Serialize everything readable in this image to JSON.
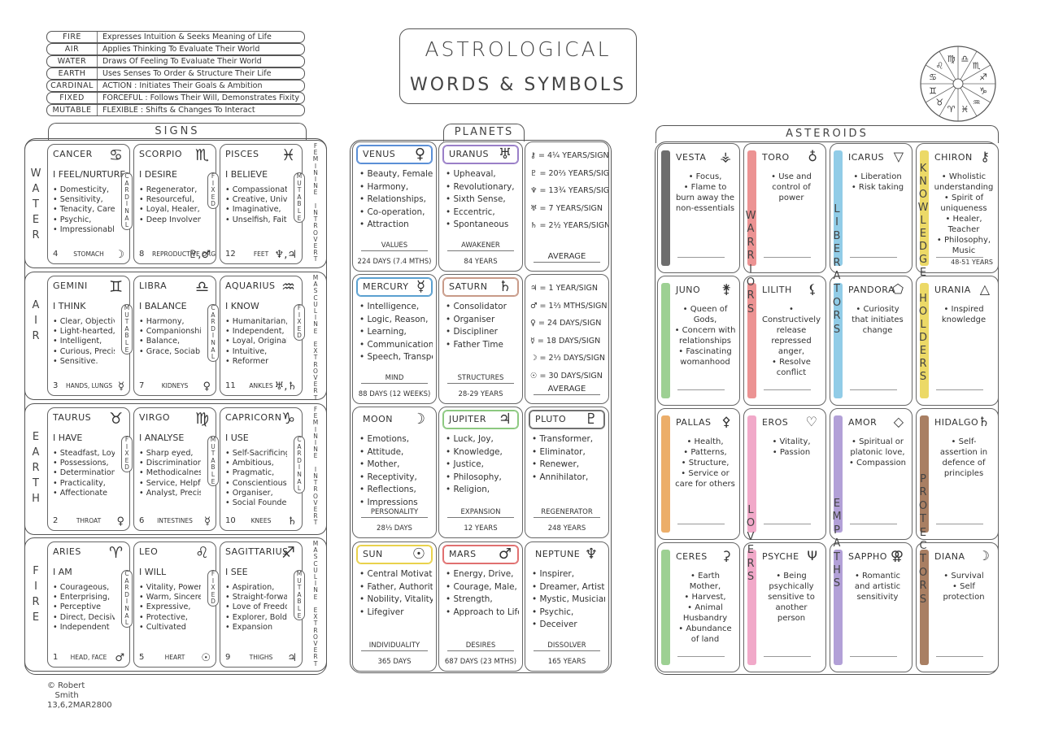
{
  "title": {
    "line1": "ASTROLOGICAL",
    "line2": "WORDS & SYMBOLS"
  },
  "legend": [
    {
      "key": "FIRE",
      "desc": "Expresses Intuition & Seeks Meaning of Life"
    },
    {
      "key": "AIR",
      "desc": "Applies Thinking To Evaluate Their World"
    },
    {
      "key": "WATER",
      "desc": "Draws Of Feeling To Evaluate Their World"
    },
    {
      "key": "EARTH",
      "desc": "Uses Senses To Order & Structure Their Life"
    },
    {
      "key": "CARDINAL",
      "desc": "ACTION : Initiates Their Goals & Ambition"
    },
    {
      "key": "FIXED",
      "desc": "FORCEFUL : Follows Their Will, Demonstrates Fixity"
    },
    {
      "key": "MUTABLE",
      "desc": "FLEXIBLE : Shifts & Changes To Interact"
    }
  ],
  "wheel_glyphs": [
    "♈",
    "♉",
    "♊",
    "♋",
    "♌",
    "♍",
    "♎",
    "♏",
    "♐",
    "♑",
    "♒",
    "♓"
  ],
  "sections": {
    "signs": "SIGNS",
    "planets": "PLANETS",
    "asteroids": "ASTEROIDS"
  },
  "signs": {
    "elements": [
      {
        "label": "W\nA\nT\nE\nR",
        "right": "F\nE\nM\nI\nN\nI\nN\nE\n \nI\nN\nT\nR\nO\nV\nE\nR\nT"
      },
      {
        "label": "A\nI\nR",
        "right": "M\nA\nS\nC\nU\nL\nI\nN\nE\n \nE\nX\nT\nR\nO\nV\nE\nR\nT"
      },
      {
        "label": "E\nA\nR\nT\nH",
        "right": "F\nE\nM\nI\nN\nI\nN\nE\n \nI\nN\nT\nR\nO\nV\nE\nR\nT"
      },
      {
        "label": "F\nI\nR\nE",
        "right": "M\nA\nS\nC\nU\nL\nI\nN\nE\n \nE\nX\nT\nR\nO\nV\nE\nR\nT"
      }
    ],
    "rows": [
      [
        {
          "name": "CANCER",
          "sym": "♋",
          "motto": "I FEEL/NURTURE",
          "traits": [
            "Domesticity,",
            "Sensitivity,",
            "Tenacity, Carer,",
            "Psychic,",
            "Impressionable"
          ],
          "num": "4",
          "body": "STOMACH",
          "ruler": "☽",
          "modality": "C\nA\nR\nD\nI\nN\nA\nL"
        },
        {
          "name": "SCORPIO",
          "sym": "♏",
          "motto": "I DESIRE",
          "traits": [
            "Regenerator,",
            "Resourceful,",
            "Loyal, Healer,",
            "Deep Involvement"
          ],
          "num": "8",
          "body": "REPRODUCTIVE ORGANS",
          "ruler": "♇,♂",
          "modality": "F\nI\nX\nE\nD"
        },
        {
          "name": "PISCES",
          "sym": "♓",
          "motto": "I BELIEVE",
          "traits": [
            "Compassionate,",
            "Creative, Universal",
            "Imaginative,",
            "Unselfish, Faith"
          ],
          "num": "12",
          "body": "FEET",
          "ruler": "♆,♃",
          "modality": "M\nU\nT\nA\nB\nL\nE"
        }
      ],
      [
        {
          "name": "GEMINI",
          "sym": "♊",
          "motto": "I THINK",
          "traits": [
            "Clear, Objective,",
            "Light-hearted,",
            "Intelligent,",
            "Curious, Precise,",
            "Sensitive."
          ],
          "num": "3",
          "body": "HANDS, LUNGS",
          "ruler": "☿",
          "modality": "M\nU\nT\nA\nB\nL\nE"
        },
        {
          "name": "LIBRA",
          "sym": "♎",
          "motto": "I BALANCE",
          "traits": [
            "Harmony,",
            "Companionship,",
            "Balance,",
            "Grace, Sociable"
          ],
          "num": "7",
          "body": "KIDNEYS",
          "ruler": "♀",
          "modality": "C\nA\nR\nD\nI\nN\nA\nL"
        },
        {
          "name": "AQUARIUS",
          "sym": "♒",
          "motto": "I KNOW",
          "traits": [
            "Humanitarian,",
            "Independent,",
            "Loyal, Original",
            "Intuitive,",
            "Reformer"
          ],
          "num": "11",
          "body": "ANKLES",
          "ruler": "♅,♄",
          "modality": "F\nI\nX\nE\nD"
        }
      ],
      [
        {
          "name": "TAURUS",
          "sym": "♉",
          "motto": "I HAVE",
          "traits": [
            "Steadfast, Loyal,",
            "Possessions,",
            "Determination,",
            "Practicality,",
            "Affectionate"
          ],
          "num": "2",
          "body": "THROAT",
          "ruler": "♀",
          "modality": "F\nI\nX\nE\nD"
        },
        {
          "name": "VIRGO",
          "sym": "♍",
          "motto": "I ANALYSE",
          "traits": [
            "Sharp eyed,",
            "Discrimination",
            "Methodicalness,",
            "Service, Helpful,",
            "Analyst, Precise"
          ],
          "num": "6",
          "body": "INTESTINES",
          "ruler": "☿",
          "modality": "M\nU\nT\nA\nB\nL\nE"
        },
        {
          "name": "CAPRICORN",
          "sym": "♑",
          "motto": "I USE",
          "traits": [
            "Self-Sacrificing,",
            "Ambitious,",
            "Pragmatic,",
            "Conscientious,",
            "Organiser,",
            "Social Founder"
          ],
          "num": "10",
          "body": "KNEES",
          "ruler": "♄",
          "modality": "C\nA\nR\nD\nI\nN\nA\nL"
        }
      ],
      [
        {
          "name": "ARIES",
          "sym": "♈",
          "motto": "I AM",
          "traits": [
            "Courageous,",
            "Enterprising,",
            "Perceptive",
            "Direct, Decisive,",
            "Independent"
          ],
          "num": "1",
          "body": "HEAD, FACE",
          "ruler": "♂",
          "modality": "C\nA\nR\nD\nI\nN\nA\nL"
        },
        {
          "name": "LEO",
          "sym": "♌",
          "motto": "I WILL",
          "traits": [
            "Vitality, Power,",
            "Warm, Sincere,",
            "Expressive,",
            "Protective,",
            "Cultivated"
          ],
          "num": "5",
          "body": "HEART",
          "ruler": "☉",
          "modality": "F\nI\nX\nE\nD"
        },
        {
          "name": "SAGITTARIUS",
          "sym": "♐",
          "motto": "I SEE",
          "traits": [
            "Aspiration,",
            "Straight-forward,",
            "Love of Freedom",
            "Explorer, Bold,",
            "Expansion"
          ],
          "num": "9",
          "body": "THIGHS",
          "ruler": "♃",
          "modality": "M\nU\nT\nA\nB\nL\nE"
        }
      ]
    ]
  },
  "planets": [
    [
      {
        "name": "VENUS",
        "sym": "♀",
        "color": "#5b8fd6",
        "traits": [
          "Beauty, Female,",
          "Harmony,",
          "Relationships,",
          "Co-operation,",
          "Attraction"
        ],
        "key": "VALUES",
        "cycle": "224 DAYS (7.4 MTHS)"
      },
      {
        "name": "URANUS",
        "sym": "♅",
        "color": "#9a7fc8",
        "traits": [
          "Upheaval,",
          "Revolutionary,",
          "Sixth Sense,",
          "Eccentric,",
          "Spontaneous"
        ],
        "key": "AWAKENER",
        "cycle": "84 YEARS"
      },
      {
        "list": [
          "⚷ = 4¼ YEARS/SIGN",
          "♇ = 20⅔ YEARS/SIGN",
          "♆ = 13¾ YEARS/SIGN",
          "♅ = 7 YEARS/SIGN",
          "♄ = 2½ YEARS/SIGN"
        ],
        "key": "AVERAGE"
      }
    ],
    [
      {
        "name": "MERCURY",
        "sym": "☿",
        "color": "#5aa0d0",
        "traits": [
          "Intelligence,",
          "Logic, Reason,",
          "Learning,",
          "Communication",
          "Speech, Transport"
        ],
        "key": "MIND",
        "cycle": "88 DAYS (12 WEEKS)"
      },
      {
        "name": "SATURN",
        "sym": "♄",
        "color": "#c89a88",
        "traits": [
          "Consolidator",
          "Organiser",
          "Discipliner",
          "Father Time"
        ],
        "key": "STRUCTURES",
        "cycle": "28-29 YEARS"
      },
      {
        "list": [
          "♃ = 1 YEAR/SIGN",
          "♂ = 1⅔ MTHS/SIGN",
          "♀ = 24 DAYS/SIGN",
          "☿ = 18 DAYS/SIGN",
          "☽ = 2⅓ DAYS/SIGN",
          "☉ = 30 DAYS/SIGN"
        ],
        "key": "AVERAGE"
      }
    ],
    [
      {
        "name": "MOON",
        "sym": "☽",
        "color": "#ffffff",
        "traits": [
          "Emotions,",
          "Attitude,",
          "Mother,",
          "Receptivity,",
          "Reflections,",
          "Impressions"
        ],
        "key": "PERSONALITY",
        "cycle": "28⅓ DAYS"
      },
      {
        "name": "JUPITER",
        "sym": "♃",
        "color": "#8cc880",
        "traits": [
          "Luck, Joy,",
          "Knowledge,",
          "Justice,",
          "Philosophy,",
          "Religion,"
        ],
        "key": "EXPANSION",
        "cycle": "12 YEARS"
      },
      {
        "name": "PLUTO",
        "sym": "♇",
        "color": "#707070",
        "traits": [
          "Transformer,",
          "Eliminator,",
          "Renewer,",
          "Annihilator,"
        ],
        "key": "REGENERATOR",
        "cycle": "248 YEARS"
      }
    ],
    [
      {
        "name": "SUN",
        "sym": "☉",
        "color": "#e9d24c",
        "traits": [
          "Central Motivation",
          "Father, Authority,",
          "Nobility, Vitality,",
          "Lifegiver"
        ],
        "key": "INDIVIDUALITY",
        "cycle": "365 DAYS"
      },
      {
        "name": "MARS",
        "sym": "♂",
        "color": "#e07070",
        "traits": [
          "Energy, Drive,",
          "Courage, Male,",
          "Strength,",
          "Approach to Life"
        ],
        "key": "DESIRES",
        "cycle": "687 DAYS (23 MTHS)"
      },
      {
        "name": "NEPTUNE",
        "sym": "♆",
        "color": "#ffffff",
        "traits": [
          "Inspirer,",
          "Dreamer, Artist,",
          "Mystic, Musician",
          "Psychic,",
          "Deceiver"
        ],
        "key": "DISSOLVER",
        "cycle": "165 YEARS"
      }
    ]
  ],
  "asteroids": {
    "groups": {
      "warriors": "W\nA\nR\nR\nI\nO\nR\nS",
      "liberators": "L\nI\nB\nE\nR\nA\nT\nO\nR\nS",
      "knowledge": "K\nN\nO\nW\nL\nE\nD\nG\nE\n \nH\nO\nL\nD\nE\nR\nS",
      "lovers": "L\nO\nV\nE\nR\nS",
      "empaths": "E\nM\nP\nA\nT\nH\nS",
      "protectors": "P\nR\nO\nT\nE\nC\nT\nO\nR\nS"
    },
    "rows": [
      [
        {
          "name": "VESTA",
          "sym": "⚶",
          "color": "#555555",
          "traits": [
            "Focus,",
            "Flame to burn away the non-essentials"
          ]
        },
        {
          "name": "TORO",
          "sym": "♁",
          "color": "#e98080",
          "traits": [
            "Use and control of power"
          ]
        },
        {
          "name": "ICARUS",
          "sym": "▽",
          "color": "#7ec3e3",
          "traits": [
            "Liberation",
            "Risk taking"
          ]
        },
        {
          "name": "CHIRON",
          "sym": "⚷",
          "color": "#e9d24c",
          "traits": [
            "Wholistic understanding",
            "Spirit of uniqueness",
            "Healer, Teacher",
            "Philosophy, Music"
          ],
          "cycle": "48-51 YEARS"
        }
      ],
      [
        {
          "name": "JUNO",
          "sym": "⚵",
          "color": "#8cc880",
          "traits": [
            "Queen of Gods,",
            "Concern with relationships",
            "Fascinating womanhood"
          ]
        },
        {
          "name": "LILITH",
          "sym": "⚸",
          "color": "#e98080",
          "traits": [
            "Constructively release repressed anger,",
            "Resolve conflict"
          ]
        },
        {
          "name": "PANDORA",
          "sym": "⬠",
          "color": "#7ec3e3",
          "traits": [
            "Curiosity that initiates change"
          ]
        },
        {
          "name": "URANIA",
          "sym": "△",
          "color": "#e9d24c",
          "traits": [
            "Inspired knowledge"
          ]
        }
      ],
      [
        {
          "name": "PALLAS",
          "sym": "⚴",
          "color": "#e9a050",
          "traits": [
            "Health,",
            "Patterns,",
            "Structure,",
            "Service or care for others"
          ]
        },
        {
          "name": "EROS",
          "sym": "♡",
          "color": "#ee9ac0",
          "traits": [
            "Vitality,",
            "Passion"
          ]
        },
        {
          "name": "AMOR",
          "sym": "◇",
          "color": "#a58fd0",
          "traits": [
            "Spiritual or platonic love,",
            "Compassion"
          ]
        },
        {
          "name": "HIDALGO",
          "sym": "♄",
          "color": "#9a6848",
          "traits": [
            "Self-assertion in defence of principles"
          ]
        }
      ],
      [
        {
          "name": "CERES",
          "sym": "⚳",
          "color": "#8cc880",
          "traits": [
            "Earth Mother,",
            "Harvest,",
            "Animal Husbandry",
            "Abundance of land"
          ]
        },
        {
          "name": "PSYCHE",
          "sym": "Ψ",
          "color": "#ee9ac0",
          "traits": [
            "Being psychically sensitive to another person"
          ]
        },
        {
          "name": "SAPPHO",
          "sym": "⚢",
          "color": "#a58fd0",
          "traits": [
            "Romantic and artistic sensitivity"
          ]
        },
        {
          "name": "DIANA",
          "sym": "☽",
          "color": "#9a6848",
          "traits": [
            "Survival",
            "Self protection"
          ]
        }
      ]
    ]
  },
  "credit": "© Robert\n   Smith\n13,6,2MAR2800"
}
